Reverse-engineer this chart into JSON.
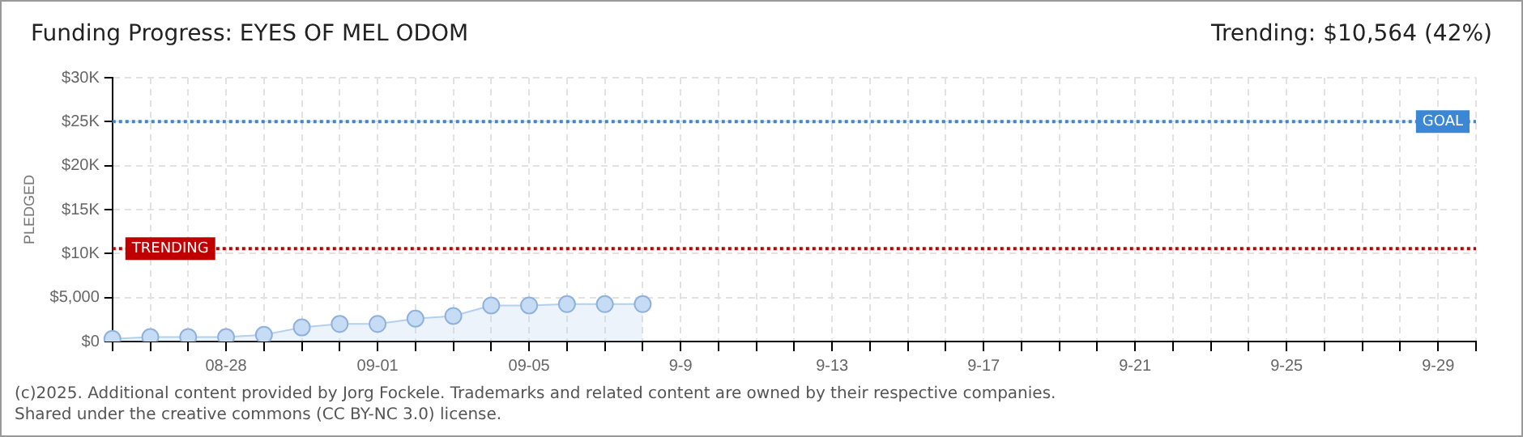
{
  "chart_data": {
    "type": "area",
    "title": "Funding Progress: EYES OF MEL ODOM",
    "subtitle": "Trending: $10,564 (42%)",
    "ylabel": "PLEDGED",
    "categories": [
      null,
      null,
      null,
      "08-28",
      null,
      null,
      null,
      "09-01",
      null,
      null,
      null,
      "09-05",
      null,
      null,
      null,
      "9-9",
      null,
      null,
      null,
      "9-13",
      null,
      null,
      null,
      "9-17",
      null,
      null,
      null,
      "9-21",
      null,
      null,
      null,
      "9-25",
      null,
      null,
      null,
      "9-29",
      null
    ],
    "series": [
      {
        "color": "#b3cfee",
        "values": [
          300,
          500,
          500,
          500,
          750,
          1600,
          2000,
          2000,
          2600,
          2900,
          4100,
          4100,
          4250,
          4250,
          4250,
          null,
          null,
          null,
          null,
          null,
          null,
          null,
          null,
          null,
          null,
          null,
          null,
          null,
          null,
          null,
          null,
          null,
          null,
          null,
          null,
          null,
          null
        ]
      }
    ],
    "ylim": [
      0,
      30000
    ],
    "yticks": [
      {
        "value": 0,
        "label": "$0"
      },
      {
        "value": 5000,
        "label": "$5,000"
      },
      {
        "value": 10000,
        "label": "$10K"
      },
      {
        "value": 15000,
        "label": "$15K"
      },
      {
        "value": 20000,
        "label": "$20K"
      },
      {
        "value": 25000,
        "label": "$25K"
      },
      {
        "value": 30000,
        "label": "$30K"
      }
    ],
    "grid": true,
    "legend": false,
    "marker": "circle",
    "line_style": "solid",
    "ref_lines": [
      {
        "axis": "y",
        "value": 25000,
        "label": "GOAL",
        "color": "#3b87d6",
        "line_style": "dotted"
      },
      {
        "axis": "y",
        "value": 10564,
        "label": "TRENDING",
        "color": "#c00000",
        "line_style": "dotted"
      }
    ],
    "annotations": [
      "(c)2025. Additional content provided by Jorg Fockele. Trademarks and related content are owned by their respective companies.",
      "Shared under the creative commons (CC BY-NC 3.0) license."
    ]
  }
}
